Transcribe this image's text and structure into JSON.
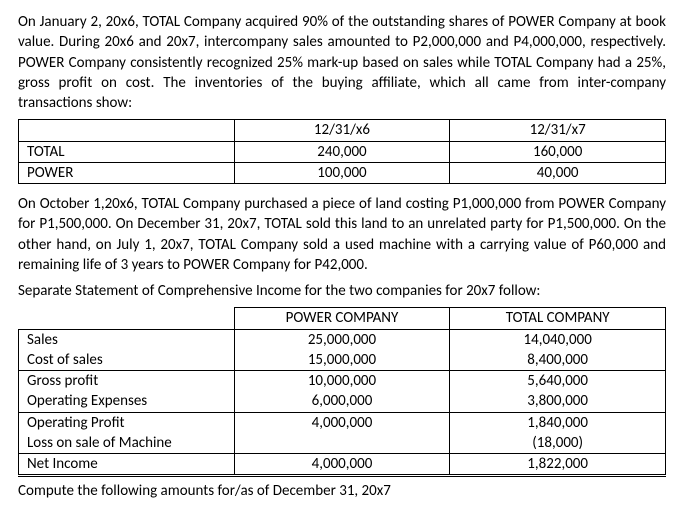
{
  "para1": "On January 2, 20x6, TOTAL Company acquired 90% of the outstanding shares of POWER Company at book value. During 20x6 and 20x7, intercompany sales amounted to P2,000,000 and P4,000,000, respectively. POWER Company consistently recognized 25% mark-up based on sales while TOTAL Company had a 25%, gross profit on cost. The inventories of the buying affiliate, which all came from inter-company transactions show:",
  "inv_table": {
    "columns": [
      "",
      "12/31/x6",
      "12/31/x7"
    ],
    "rows": [
      [
        "TOTAL",
        "240,000",
        "160,000"
      ],
      [
        "POWER",
        "100,000",
        "40,000"
      ]
    ]
  },
  "para2": "On October 1,20x6, TOTAL Company purchased a piece of land costing P1,000,000 from POWER Company for P1,500,000. On December 31, 20x7, TOTAL sold this land to an unrelated party for P1,500,000. On the other hand, on July 1, 20x7, TOTAL Company sold a used machine with a carrying value of P60,000 and remaining life of 3 years to POWER Company for P42,000.",
  "para3": "Separate Statement of Comprehensive Income for the two companies for 20x7 follow:",
  "ci_table": {
    "header": [
      "",
      "POWER COMPANY",
      "TOTAL COMPANY"
    ],
    "rows": [
      {
        "label": "Sales",
        "power": "25,000,000",
        "total": "14,040,000"
      },
      {
        "label": "Cost of sales",
        "power": "15,000,000",
        "total": "8,400,000"
      },
      {
        "label": "Gross profit",
        "power": "10,000,000",
        "total": "5,640,000"
      },
      {
        "label": "Operating Expenses",
        "power": "6,000,000",
        "total": "3,800,000"
      },
      {
        "label": "Operating Profit",
        "power": "4,000,000",
        "total": "1,840,000"
      },
      {
        "label": "Loss on sale of Machine",
        "power": "",
        "total": "(18,000)"
      },
      {
        "label": "Net Income",
        "power": "4,000,000",
        "total": "1,822,000"
      }
    ]
  },
  "para4": "Compute the following amounts for/as of December 31, 20x7"
}
